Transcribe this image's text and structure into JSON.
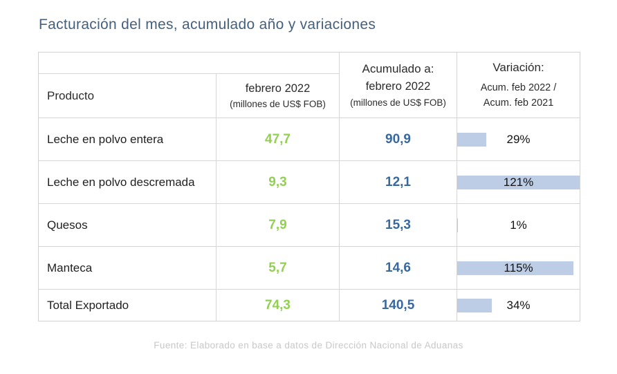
{
  "page": {
    "title": "Facturación del mes, acumulado año y variaciones",
    "footer": "Fuente: Elaborado en base a datos de Dirección Nacional de Aduanas"
  },
  "colors": {
    "title_text": "#44607c",
    "month_value_text": "#92d050",
    "accum_value_text": "#38689c",
    "variation_bar_fill": "#bccde5",
    "grid_border": "#d6d6d6",
    "footer_text": "#c8c8c8"
  },
  "table": {
    "header": {
      "product_label": "Producto",
      "month_col": {
        "line1": "febrero 2022",
        "line2": "(millones de US$ FOB)"
      },
      "accum_col": {
        "line1": "Acumulado a:",
        "line2": "febrero 2022",
        "line3": "(millones de US$ FOB)"
      },
      "variation_col": {
        "line1": "Variación:",
        "line2": "Acum. feb 2022 /",
        "line3": "Acum. feb 2021"
      }
    },
    "rows": [
      {
        "product": "Leche en polvo entera",
        "month_value": "47,7",
        "accum_value": "90,9",
        "variation_label": "29%",
        "variation_value": 29
      },
      {
        "product": "Leche en polvo descremada",
        "month_value": "9,3",
        "accum_value": "12,1",
        "variation_label": "121%",
        "variation_value": 121
      },
      {
        "product": "Quesos",
        "month_value": "7,9",
        "accum_value": "15,3",
        "variation_label": "1%",
        "variation_value": 1
      },
      {
        "product": "Manteca",
        "month_value": "5,7",
        "accum_value": "14,6",
        "variation_label": "115%",
        "variation_value": 115
      },
      {
        "product": "Total Exportado",
        "month_value": "74,3",
        "accum_value": "140,5",
        "variation_label": "34%",
        "variation_value": 34
      }
    ]
  },
  "chart_data": {
    "type": "table",
    "title": "Facturación del mes, acumulado año y variaciones",
    "columns": [
      "Producto",
      "febrero 2022 (millones de US$ FOB)",
      "Acumulado a: febrero 2022 (millones de US$ FOB)",
      "Variación: Acum. feb 2022 / Acum. feb 2021"
    ],
    "rows": [
      [
        "Leche en polvo entera",
        47.7,
        90.9,
        "29%"
      ],
      [
        "Leche en polvo descremada",
        9.3,
        12.1,
        "121%"
      ],
      [
        "Quesos",
        7.9,
        15.3,
        "1%"
      ],
      [
        "Manteca",
        5.7,
        14.6,
        "115%"
      ],
      [
        "Total Exportado",
        74.3,
        140.5,
        "34%"
      ]
    ],
    "layout_hints": {
      "variation_rendered_as": "data-bars scaled so max value (121%) fills cell width",
      "month_values_color": "#92d050",
      "accum_values_color": "#38689c"
    }
  }
}
